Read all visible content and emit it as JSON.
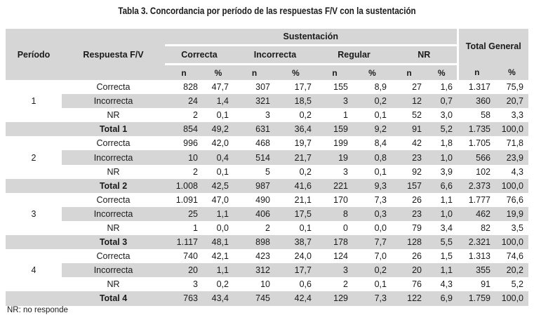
{
  "caption": "Tabla 3.  Concordancia por período de las respuestas F/V con la sustentación",
  "headers": {
    "periodo": "Período",
    "respuesta": "Respuesta F/V",
    "sustentacion": "Sustentación",
    "total_general": "Total General",
    "groups": [
      "Correcta",
      "Incorrecta",
      "Regular",
      "NR"
    ],
    "n": "n",
    "pct": "%"
  },
  "rows": [
    {
      "periodo": "1",
      "label": "Correcta",
      "vals": [
        "828",
        "47,7",
        "307",
        "17,7",
        "155",
        "8,9",
        "27",
        "1,6",
        "1.317",
        "75,9"
      ]
    },
    {
      "periodo": "",
      "label": "Incorrecta",
      "vals": [
        "24",
        "1,4",
        "321",
        "18,5",
        "3",
        "0,2",
        "12",
        "0,7",
        "360",
        "20,7"
      ]
    },
    {
      "periodo": "",
      "label": "NR",
      "vals": [
        "2",
        "0,1",
        "3",
        "0,2",
        "1",
        "0,1",
        "52",
        "3,0",
        "58",
        "3,3"
      ]
    },
    {
      "total": true,
      "label": "Total 1",
      "vals": [
        "854",
        "49,2",
        "631",
        "36,4",
        "159",
        "9,2",
        "91",
        "5,2",
        "1.735",
        "100,0"
      ]
    },
    {
      "periodo": "2",
      "label": "Correcta",
      "vals": [
        "996",
        "42,0",
        "468",
        "19,7",
        "199",
        "8,4",
        "42",
        "1,8",
        "1.705",
        "71,8"
      ]
    },
    {
      "periodo": "",
      "label": "Incorrecta",
      "vals": [
        "10",
        "0,4",
        "514",
        "21,7",
        "19",
        "0,8",
        "23",
        "1,0",
        "566",
        "23,9"
      ]
    },
    {
      "periodo": "",
      "label": "NR",
      "vals": [
        "2",
        "0,1",
        "5",
        "0,2",
        "3",
        "0,1",
        "92",
        "3,9",
        "102",
        "4,3"
      ]
    },
    {
      "total": true,
      "label": "Total 2",
      "vals": [
        "1.008",
        "42,5",
        "987",
        "41,6",
        "221",
        "9,3",
        "157",
        "6,6",
        "2.373",
        "100,0"
      ]
    },
    {
      "periodo": "3",
      "label": "Correcta",
      "vals": [
        "1.091",
        "47,0",
        "490",
        "21,1",
        "170",
        "7,3",
        "26",
        "1,1",
        "1.777",
        "76,6"
      ]
    },
    {
      "periodo": "",
      "label": "Incorrecta",
      "vals": [
        "25",
        "1,1",
        "406",
        "17,5",
        "8",
        "0,3",
        "23",
        "1,0",
        "462",
        "19,9"
      ]
    },
    {
      "periodo": "",
      "label": "NR",
      "vals": [
        "1",
        "0,0",
        "2",
        "0,1",
        "0",
        "0,0",
        "79",
        "3,4",
        "82",
        "3,5"
      ]
    },
    {
      "total": true,
      "label": "Total 3",
      "vals": [
        "1.117",
        "48,1",
        "898",
        "38,7",
        "178",
        "7,7",
        "128",
        "5,5",
        "2.321",
        "100,0"
      ]
    },
    {
      "periodo": "4",
      "label": "Correcta",
      "vals": [
        "740",
        "42,1",
        "423",
        "24,0",
        "124",
        "7,0",
        "26",
        "1,5",
        "1.313",
        "74,6"
      ]
    },
    {
      "periodo": "",
      "label": "Incorrecta",
      "vals": [
        "20",
        "1,1",
        "312",
        "17,7",
        "3",
        "0,2",
        "20",
        "1,1",
        "355",
        "20,2"
      ]
    },
    {
      "periodo": "",
      "label": "NR",
      "vals": [
        "3",
        "0,2",
        "10",
        "0,6",
        "2",
        "0,1",
        "76",
        "4,3",
        "91",
        "5,2"
      ]
    },
    {
      "total": true,
      "label": "Total 4",
      "vals": [
        "763",
        "43,4",
        "745",
        "42,4",
        "129",
        "7,3",
        "122",
        "6,9",
        "1.759",
        "100,0"
      ]
    }
  ],
  "note": "NR: no responde",
  "colors": {
    "header_bg": "#d6d6d6",
    "stripe_bg": "#d6d6d6",
    "text": "#1a1a1a"
  }
}
